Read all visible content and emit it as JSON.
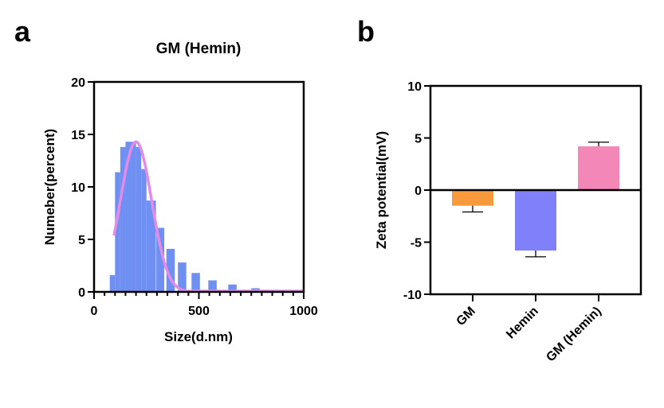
{
  "chart_data": [
    {
      "panel": "a",
      "type": "bar",
      "title": "GM (Hemin)",
      "xlabel": "Size(d.nm)",
      "ylabel": "Numeber(percent)",
      "xlim": [
        0,
        1000
      ],
      "ylim": [
        0,
        20
      ],
      "xticks": [
        0,
        500,
        1000
      ],
      "yticks": [
        0,
        5,
        10,
        15,
        20
      ],
      "bar_color": "#6f8ff2",
      "fit_color": "#e28be8",
      "histogram": [
        {
          "x0": 75,
          "x1": 100,
          "value": 1.6
        },
        {
          "x0": 100,
          "x1": 125,
          "value": 11.4
        },
        {
          "x0": 125,
          "x1": 150,
          "value": 13.8
        },
        {
          "x0": 150,
          "x1": 175,
          "value": 14.3
        },
        {
          "x0": 175,
          "x1": 200,
          "value": 14.3
        },
        {
          "x0": 200,
          "x1": 225,
          "value": 13.8
        },
        {
          "x0": 225,
          "x1": 250,
          "value": 11.7
        },
        {
          "x0": 250,
          "x1": 295,
          "value": 8.7
        },
        {
          "x0": 297,
          "x1": 335,
          "value": 6.1
        },
        {
          "x0": 345,
          "x1": 385,
          "value": 4.1
        },
        {
          "x0": 400,
          "x1": 440,
          "value": 2.8
        },
        {
          "x0": 465,
          "x1": 505,
          "value": 1.8
        },
        {
          "x0": 545,
          "x1": 585,
          "value": 1.1
        },
        {
          "x0": 640,
          "x1": 680,
          "value": 0.7
        },
        {
          "x0": 750,
          "x1": 790,
          "value": 0.35
        },
        {
          "x0": 880,
          "x1": 920,
          "value": 0.15
        }
      ],
      "fit_curve": {
        "type": "gaussian",
        "amplitude": 14.3,
        "center": 200,
        "sigma": 75,
        "x_range": [
          95,
          1000
        ]
      }
    },
    {
      "panel": "b",
      "type": "bar",
      "title": "",
      "xlabel": "",
      "ylabel": "Zeta potential(mV)",
      "ylim": [
        -10,
        10
      ],
      "yticks": [
        -10,
        -5,
        0,
        5,
        10
      ],
      "categories": [
        "GM",
        "Hemin",
        "GM (Hemin)"
      ],
      "values": [
        -1.5,
        -5.8,
        4.2
      ],
      "errors": [
        0.6,
        0.6,
        0.4
      ],
      "colors": [
        "#f89a3c",
        "#7f80fa",
        "#f387b8"
      ]
    }
  ],
  "panel_letters": [
    "a",
    "b"
  ]
}
